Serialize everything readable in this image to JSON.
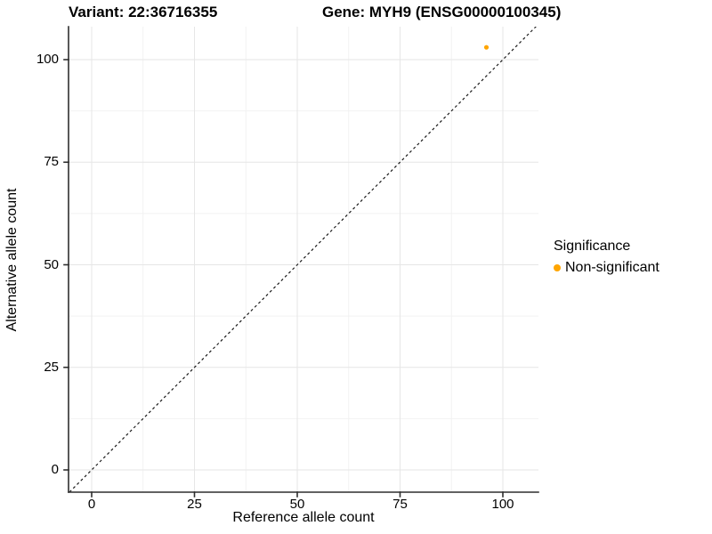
{
  "chart_data": {
    "type": "scatter",
    "titles": {
      "left": "Variant: 22:36716355",
      "right": "Gene: MYH9 (ENSG00000100345)"
    },
    "xlabel": "Reference allele count",
    "ylabel": "Alternative allele count",
    "x_ticks": [
      0,
      25,
      50,
      75,
      100
    ],
    "y_ticks": [
      0,
      25,
      50,
      75,
      100
    ],
    "x_minor_ticks": [
      12.5,
      37.5,
      62.5,
      87.5
    ],
    "y_minor_ticks": [
      12.5,
      37.5,
      62.5,
      87.5
    ],
    "xlim": [
      -5.6,
      108.7
    ],
    "ylim": [
      -5.4,
      108.0
    ],
    "grid": "major+minor",
    "points": [
      {
        "x": 96,
        "y": 103,
        "series": "Non-significant"
      }
    ],
    "reference_line": {
      "type": "identity",
      "style": "dashed",
      "from": [
        -10,
        -10
      ],
      "to": [
        115,
        115
      ]
    },
    "legend": {
      "title": "Significance",
      "position": "right",
      "entries": [
        {
          "label": "Non-significant",
          "color": "#FFA500"
        }
      ]
    },
    "colors": {
      "point": "#FFA500",
      "axis_line": "#2e2e2e",
      "grid_major": "#e6e6e6",
      "grid_minor": "#f2f2f2",
      "dashed_line": "#1a1a1a",
      "text": "#000000",
      "background": "#ffffff"
    }
  }
}
